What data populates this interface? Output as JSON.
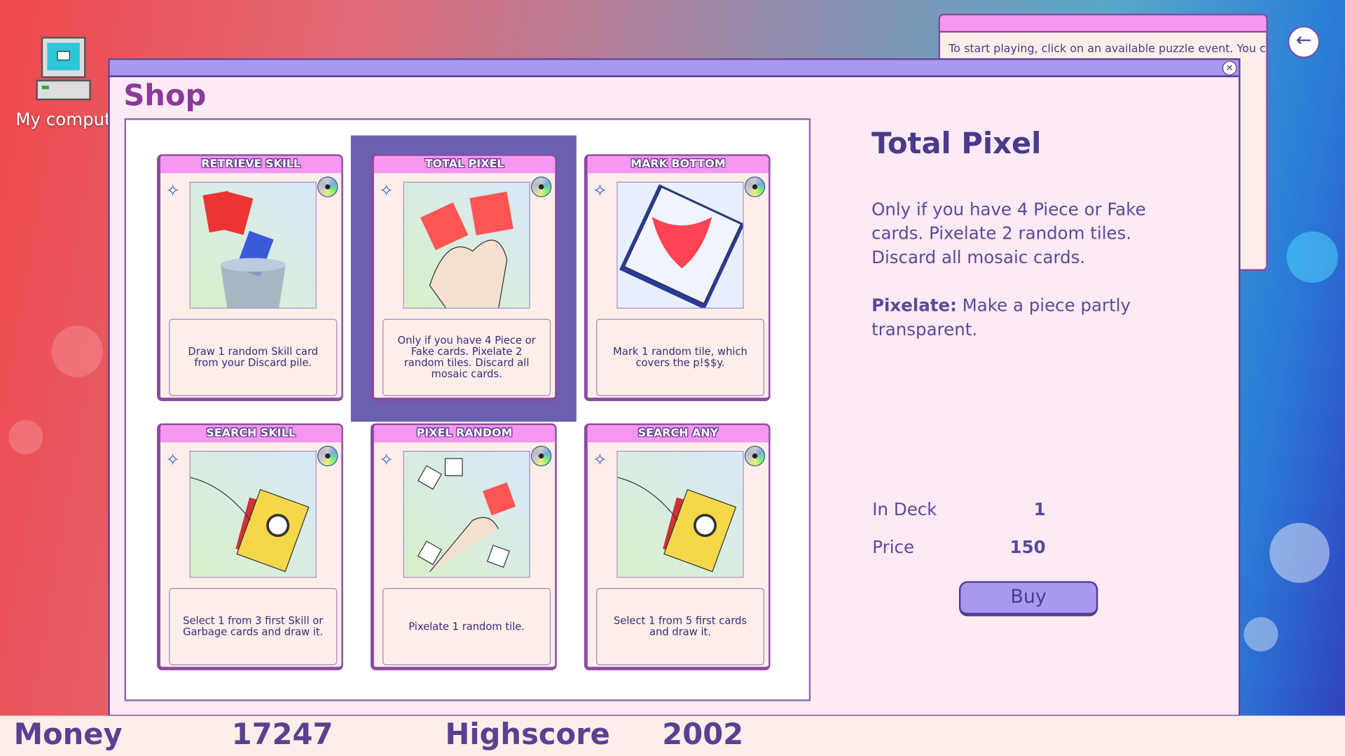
{
  "desktop": {
    "icon_label": "My comput"
  },
  "tip_window": {
    "text": "To start playing, click on an available puzzle event. You can"
  },
  "shop": {
    "title": "Shop",
    "cards": [
      {
        "name": "RETRIEVE SKILL",
        "description": "Draw 1 random Skill card from your Discard pile.",
        "selected": false
      },
      {
        "name": "TOTAL PIXEL",
        "description": "Only if you have 4 Piece or Fake cards. Pixelate 2 random tiles. Discard all mosaic cards.",
        "selected": true
      },
      {
        "name": "MARK BOTTOM",
        "description": "Mark 1 random tile, which covers the p!$$y.",
        "selected": false
      },
      {
        "name": "SEARCH SKILL",
        "description": "Select 1 from 3 first Skill or Garbage cards and draw it.",
        "selected": false
      },
      {
        "name": "PIXEL RANDOM",
        "description": "Pixelate 1 random tile.",
        "selected": false
      },
      {
        "name": "SEARCH ANY",
        "description": "Select 1 from 5 first cards and draw it.",
        "selected": false
      }
    ],
    "detail": {
      "title": "Total Pixel",
      "description": "Only if you have 4 Piece or Fake cards. Pixelate 2 random tiles. Discard all mosaic cards.",
      "keyword": "Pixelate:",
      "keyword_text": "Make a piece partly transparent.",
      "in_deck_label": "In Deck",
      "in_deck": "1",
      "price_label": "Price",
      "price": "150",
      "buy_label": "Buy"
    }
  },
  "status": {
    "money_label": "Money",
    "money": "17247",
    "highscore_label": "Highscore",
    "highscore": "2002"
  },
  "colors": {
    "accent": "#a898f0",
    "card_header": "#f596f0",
    "selected": "#6a5fb0",
    "text": "#4a3a8a"
  }
}
